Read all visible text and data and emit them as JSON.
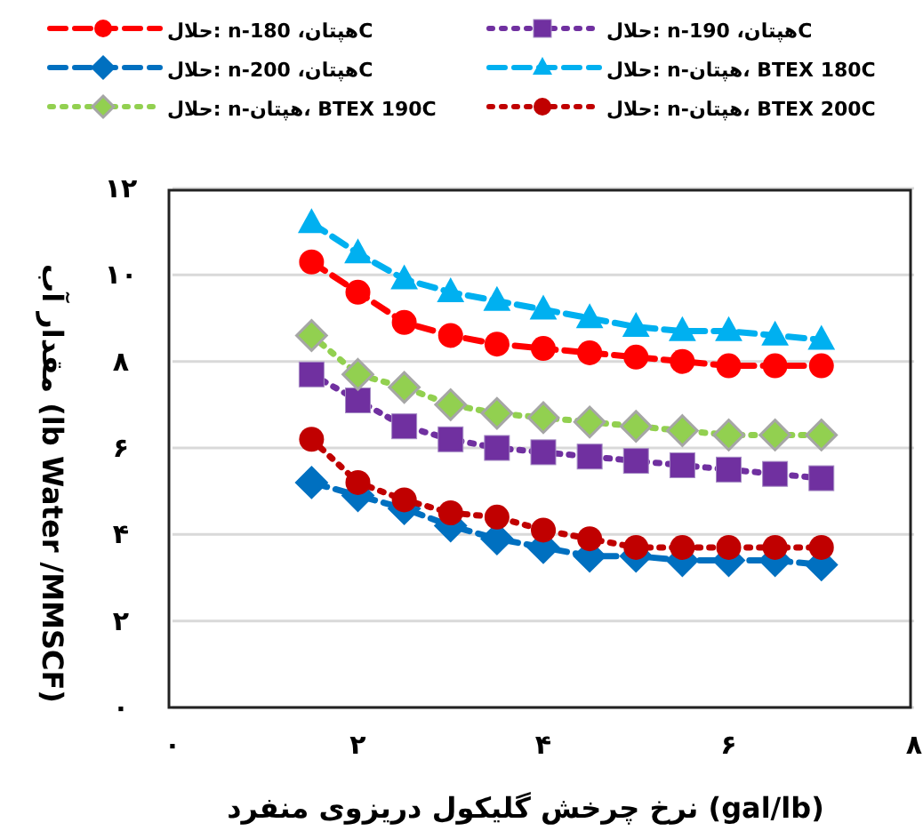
{
  "chart_data": {
    "type": "line",
    "xlabel": "نرخ چرخش گلیکول دریزوی منفرد (gal/lb)",
    "ylabel": "مقدار آب (lb Water /MMSCF)",
    "x": [
      1.5,
      2,
      2.5,
      3,
      3.5,
      4,
      4.5,
      5,
      5.5,
      6,
      6.5,
      7
    ],
    "series": [
      {
        "name": "حلال: n-هپتان، 180C",
        "color": "#ff0000",
        "line_style": "dashed",
        "marker": "circle",
        "values": [
          10.3,
          9.6,
          8.9,
          8.6,
          8.4,
          8.3,
          8.2,
          8.1,
          8.0,
          7.9,
          7.9,
          7.9
        ]
      },
      {
        "name": "حلال: n-هپتان، 190C",
        "color": "#7030a0",
        "line_style": "dotted",
        "marker": "square",
        "values": [
          7.7,
          7.1,
          6.5,
          6.2,
          6.0,
          5.9,
          5.8,
          5.7,
          5.6,
          5.5,
          5.4,
          5.3
        ]
      },
      {
        "name": "حلال: n-هپتان، 200C",
        "color": "#0070c0",
        "line_style": "dashed",
        "marker": "diamond",
        "values": [
          5.2,
          4.9,
          4.6,
          4.2,
          3.9,
          3.7,
          3.5,
          3.5,
          3.4,
          3.4,
          3.4,
          3.3
        ]
      },
      {
        "name": "حلال: n-هپتان، BTEX 180C",
        "color": "#00b0f0",
        "line_style": "dashed",
        "marker": "triangle",
        "values": [
          11.2,
          10.5,
          9.9,
          9.6,
          9.4,
          9.2,
          9.0,
          8.8,
          8.7,
          8.7,
          8.6,
          8.5
        ]
      },
      {
        "name": "حلال: n-هپتان، BTEX 190C",
        "color": "#92d050",
        "line_style": "dotted",
        "marker": "diamond",
        "values": [
          8.6,
          7.7,
          7.4,
          7.0,
          6.8,
          6.7,
          6.6,
          6.5,
          6.4,
          6.3,
          6.3,
          6.3
        ]
      },
      {
        "name": "حلال: n-هپتان، BTEX 200C",
        "color": "#c00000",
        "line_style": "dotted",
        "marker": "circle",
        "values": [
          6.2,
          5.2,
          4.8,
          4.5,
          4.4,
          4.1,
          3.9,
          3.7,
          3.7,
          3.7,
          3.7,
          3.7
        ]
      }
    ],
    "xlim": [
      0,
      8
    ],
    "ylim": [
      0,
      12
    ],
    "xticks": [
      {
        "value": 0,
        "label": "۰"
      },
      {
        "value": 2,
        "label": "۲"
      },
      {
        "value": 4,
        "label": "۴"
      },
      {
        "value": 6,
        "label": "۶"
      },
      {
        "value": 8,
        "label": "۸"
      }
    ],
    "yticks": [
      {
        "value": 0,
        "label": "۰"
      },
      {
        "value": 2,
        "label": "۲"
      },
      {
        "value": 4,
        "label": "۴"
      },
      {
        "value": 6,
        "label": "۶"
      },
      {
        "value": 8,
        "label": "۸"
      },
      {
        "value": 10,
        "label": "۱۰"
      },
      {
        "value": 12,
        "label": "۱۲"
      }
    ],
    "grid": "y",
    "legend": "top"
  }
}
